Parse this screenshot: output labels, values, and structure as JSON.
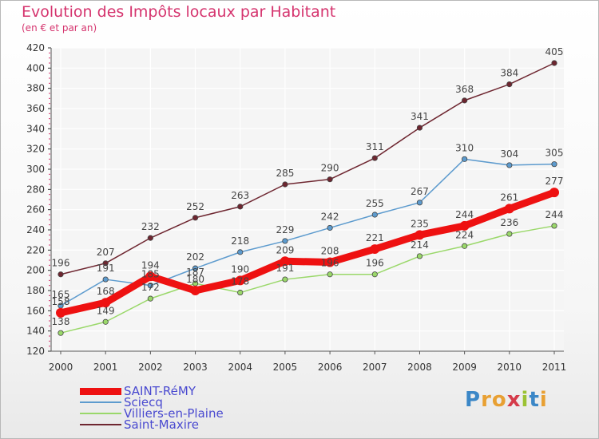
{
  "title": "Evolution des Impôts locaux par Habitant",
  "subtitle": "(en € et par an)",
  "logo": {
    "letters": [
      "P",
      "r",
      "o",
      "x",
      "i",
      "t",
      "i"
    ],
    "colors": [
      "#3b87c7",
      "#e8a033",
      "#e8a033",
      "#d53b4a",
      "#9bc234",
      "#3b87c7",
      "#e8a033"
    ]
  },
  "chart_data": {
    "type": "line",
    "title": "Evolution des Impôts locaux par Habitant",
    "subtitle": "(en € et par an)",
    "xlabel": "",
    "ylabel": "",
    "x": [
      "2000",
      "2001",
      "2002",
      "2003",
      "2004",
      "2005",
      "2006",
      "2007",
      "2008",
      "2009",
      "2010",
      "2011"
    ],
    "ylim": [
      120,
      420
    ],
    "yticks": [
      120,
      140,
      160,
      180,
      200,
      220,
      240,
      260,
      280,
      300,
      320,
      340,
      360,
      380,
      400,
      420
    ],
    "grid": true,
    "legend_position": "bottom-left",
    "series": [
      {
        "name": "Saint-Maxire",
        "color": "#6e2630",
        "values": [
          196,
          207,
          232,
          252,
          263,
          285,
          290,
          311,
          341,
          368,
          384,
          405
        ],
        "labels": [
          "196",
          "207",
          "232",
          "252",
          "263",
          "285",
          "290",
          "311",
          "341",
          "368",
          "384",
          "405"
        ]
      },
      {
        "name": "Sciecq",
        "color": "#5d9bce",
        "values": [
          165,
          191,
          185,
          202,
          218,
          229,
          242,
          255,
          267,
          310,
          304,
          305
        ],
        "labels": [
          "165",
          "191",
          "185",
          "202",
          "218",
          "229",
          "242",
          "255",
          "267",
          "310",
          "304",
          "305"
        ]
      },
      {
        "name": "Villiers-en-Plaine",
        "color": "#9ad86a",
        "values": [
          138,
          149,
          172,
          187,
          178,
          191,
          196,
          196,
          214,
          224,
          236,
          244
        ],
        "labels": [
          "138",
          "149",
          "172",
          "187",
          "178",
          "191",
          "196",
          "196",
          "214",
          "224",
          "236",
          "244"
        ]
      },
      {
        "name": "SAINT-RéMY",
        "color": "#ee1111",
        "values": [
          158,
          168,
          194,
          180,
          190,
          209,
          208,
          221,
          235,
          244,
          261,
          277
        ],
        "labels": [
          "158",
          "168",
          "194",
          "180",
          "190",
          "209",
          "208",
          "221",
          "235",
          "244",
          "261",
          "277"
        ]
      }
    ],
    "legend": [
      {
        "name": "SAINT-RéMY",
        "color": "#ee1111"
      },
      {
        "name": "Sciecq",
        "color": "#5d9bce"
      },
      {
        "name": "Villiers-en-Plaine",
        "color": "#9ad86a"
      },
      {
        "name": "Saint-Maxire",
        "color": "#6e2630"
      }
    ]
  }
}
